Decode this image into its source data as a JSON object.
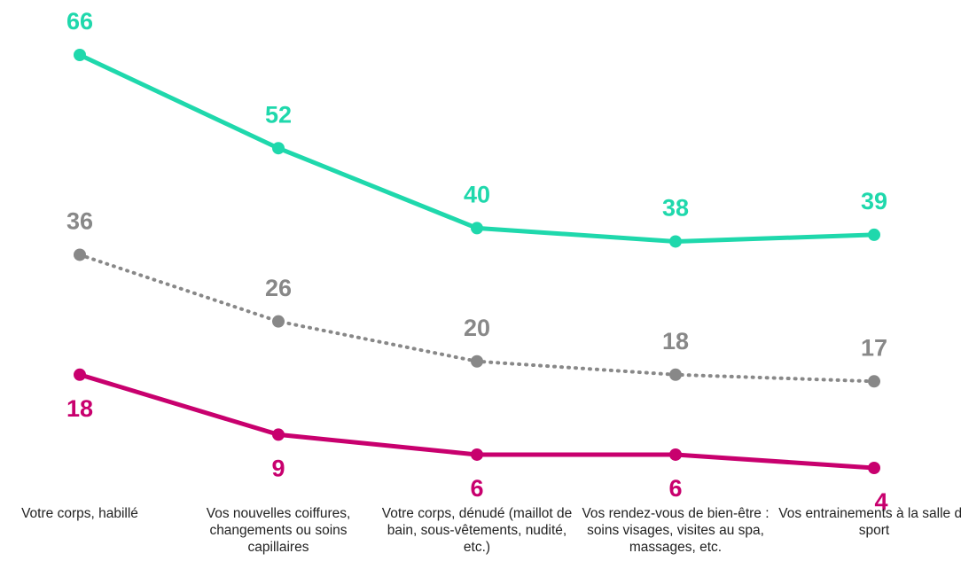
{
  "chart_data": {
    "type": "line",
    "categories": [
      "Votre corps, habillé",
      "Vos nouvelles coiffures, changements ou soins capillaires",
      "Votre corps, dénudé (maillot de bain, sous-vêtements, nudité, etc.)",
      "Vos rendez-vous de bien-être : soins visages, visites au spa, massages, etc.",
      "Vos entrainements à la salle de sport"
    ],
    "series": [
      {
        "color": "#1fd8ac",
        "dash": "solid",
        "label_position": "above",
        "values": [
          66,
          52,
          40,
          38,
          39
        ]
      },
      {
        "color": "#888888",
        "dash": "dotted",
        "label_position": "above",
        "values": [
          36,
          26,
          20,
          18,
          17
        ]
      },
      {
        "color": "#c8006e",
        "dash": "solid",
        "label_position": "below",
        "values": [
          18,
          9,
          6,
          6,
          4
        ]
      }
    ]
  }
}
